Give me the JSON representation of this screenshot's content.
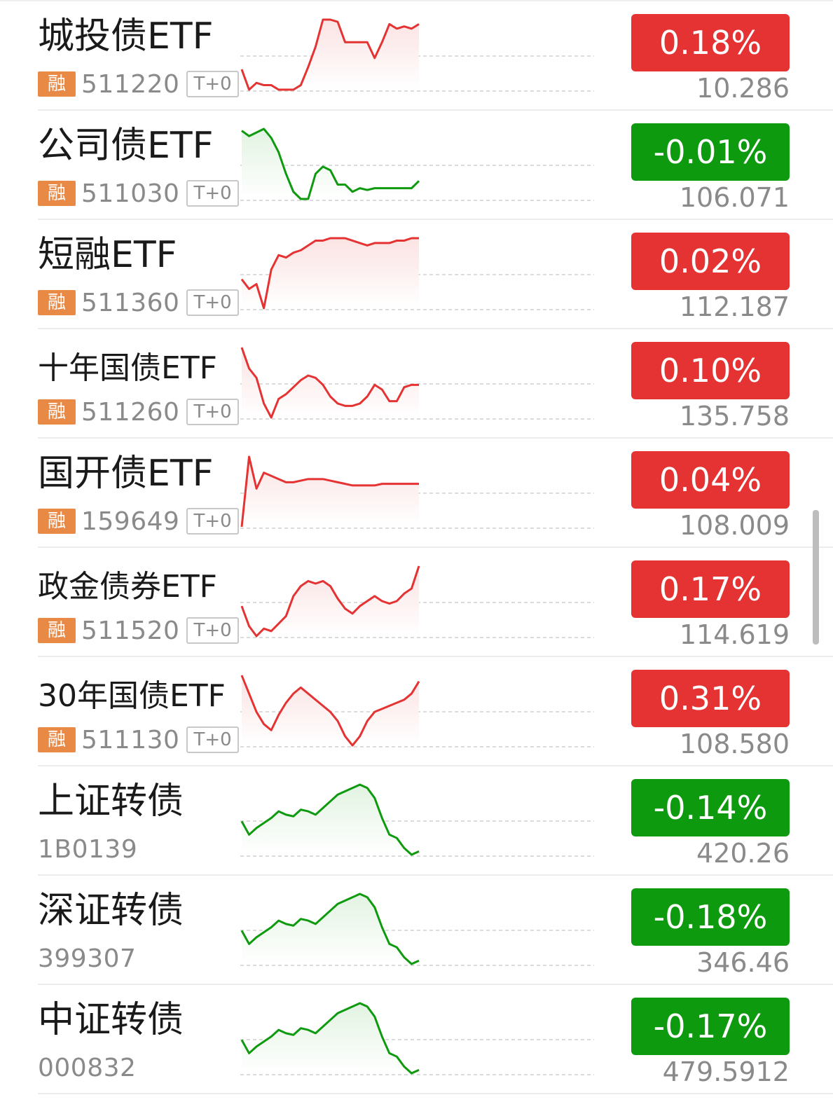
{
  "colors": {
    "up": "#e53232",
    "down": "#0e9a0e",
    "up_fill": "#fbe3e3",
    "down_fill": "#e2f3e2",
    "margin_tag": "#e88a45"
  },
  "rows": [
    {
      "name": "城投债ETF",
      "margin_tag": "融",
      "code": "511220",
      "t0": "T+0",
      "change": "0.18%",
      "price": "10.286",
      "trend": "up",
      "spark": [
        8,
        -1,
        2,
        1,
        1,
        -1,
        -1,
        -1,
        1,
        9,
        18,
        30,
        30,
        29,
        20,
        20,
        20,
        20,
        13,
        20,
        28,
        26,
        27,
        26,
        28
      ]
    },
    {
      "name": "公司债ETF",
      "margin_tag": "融",
      "code": "511030",
      "t0": "T+0",
      "change": "-0.01%",
      "price": "106.071",
      "trend": "down",
      "spark": [
        8,
        5,
        7,
        9,
        4,
        -4,
        -16,
        -26,
        -30,
        -30,
        -16,
        -12,
        -14,
        -22,
        -22,
        -26,
        -24,
        -25,
        -24,
        -24,
        -24,
        -24,
        -24,
        -24,
        -20
      ]
    },
    {
      "name": "短融ETF",
      "margin_tag": "融",
      "code": "511360",
      "t0": "T+0",
      "change": "0.02%",
      "price": "112.187",
      "trend": "up",
      "spark": [
        -2,
        -6,
        -4,
        -14,
        2,
        8,
        7,
        9,
        10,
        12,
        14,
        14,
        15,
        15,
        15,
        14,
        13,
        12,
        13,
        13,
        13,
        14,
        14,
        15,
        15
      ]
    },
    {
      "name": "十年国债ETF",
      "margin_tag": "融",
      "code": "511260",
      "t0": "T+0",
      "change": "0.10%",
      "price": "135.758",
      "trend": "up",
      "spark": [
        26,
        17,
        13,
        2,
        -4,
        4,
        6,
        9,
        12,
        14,
        13,
        10,
        5,
        2,
        1,
        1,
        2,
        5,
        10,
        8,
        3,
        3,
        9,
        10,
        10
      ]
    },
    {
      "name": "国开债ETF",
      "margin_tag": "融",
      "code": "159649",
      "t0": "T+0",
      "change": "0.04%",
      "price": "108.009",
      "trend": "up",
      "spark": [
        -16,
        28,
        8,
        18,
        16,
        14,
        12,
        12,
        13,
        14,
        14,
        14,
        13,
        12,
        11,
        10,
        10,
        10,
        10,
        11,
        11,
        11,
        11,
        11,
        11
      ]
    },
    {
      "name": "政金债券ETF",
      "margin_tag": "融",
      "code": "511520",
      "t0": "T+0",
      "change": "0.17%",
      "price": "114.619",
      "trend": "up",
      "spark": [
        10,
        2,
        -2,
        1,
        0,
        3,
        6,
        14,
        18,
        20,
        19,
        20,
        18,
        13,
        9,
        7,
        10,
        12,
        14,
        12,
        11,
        12,
        15,
        17,
        26
      ]
    },
    {
      "name": "30年国债ETF",
      "margin_tag": "融",
      "code": "511130",
      "t0": "T+0",
      "change": "0.31%",
      "price": "108.580",
      "trend": "up",
      "spark": [
        30,
        24,
        18,
        14,
        12,
        17,
        21,
        24,
        26,
        24,
        22,
        20,
        18,
        15,
        10,
        7,
        10,
        15,
        18,
        19,
        20,
        21,
        22,
        24,
        28
      ]
    },
    {
      "name": "上证转债",
      "code": "1B0139",
      "change": "-0.14%",
      "price": "420.26",
      "trend": "down",
      "spark": [
        -4,
        -12,
        -8,
        -5,
        -2,
        2,
        0,
        -1,
        3,
        2,
        0,
        4,
        8,
        12,
        14,
        16,
        18,
        16,
        10,
        -2,
        -12,
        -14,
        -20,
        -24,
        -22
      ]
    },
    {
      "name": "深证转债",
      "code": "399307",
      "change": "-0.18%",
      "price": "346.46",
      "trend": "down",
      "spark": [
        -4,
        -12,
        -8,
        -5,
        -2,
        2,
        0,
        -1,
        3,
        2,
        0,
        4,
        8,
        12,
        14,
        16,
        18,
        16,
        10,
        -2,
        -12,
        -14,
        -20,
        -24,
        -22
      ]
    },
    {
      "name": "中证转债",
      "code": "000832",
      "change": "-0.17%",
      "price": "479.5912",
      "trend": "down",
      "spark": [
        -4,
        -12,
        -8,
        -5,
        -2,
        2,
        0,
        -1,
        3,
        2,
        0,
        4,
        8,
        12,
        14,
        16,
        18,
        16,
        10,
        -2,
        -12,
        -14,
        -20,
        -24,
        -22
      ]
    }
  ]
}
